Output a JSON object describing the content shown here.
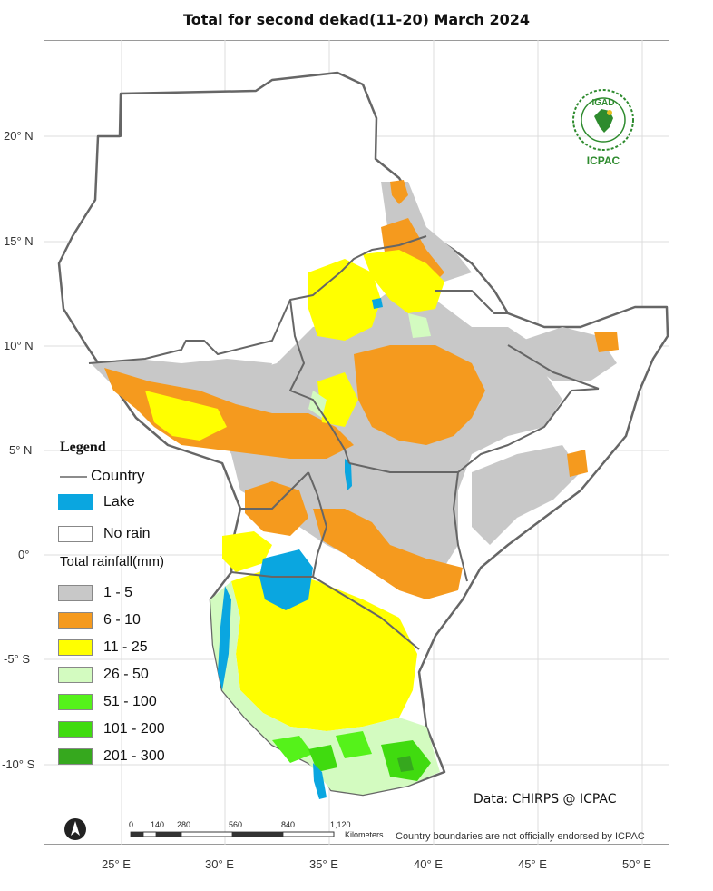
{
  "title": "Total  for  second dekad(11-20) March 2024",
  "lat_labels": [
    "20° N",
    "15° N",
    "10° N",
    "5° N",
    "0°",
    "-5° S",
    "-10° S"
  ],
  "lon_labels": [
    "25° E",
    "30° E",
    "35° E",
    "40° E",
    "45° E",
    "50° E"
  ],
  "legend": {
    "title": "Legend",
    "country": "Country",
    "lake": "Lake",
    "no_rain": "No rain",
    "rainfall_title": "Total rainfall(mm)",
    "classes": [
      {
        "label": "1 - 5",
        "color": "#c8c8c8"
      },
      {
        "label": "6 - 10",
        "color": "#f59a1e"
      },
      {
        "label": "11 - 25",
        "color": "#ffff00"
      },
      {
        "label": "26 - 50",
        "color": "#d3fbc0"
      },
      {
        "label": "51 - 100",
        "color": "#55f21a"
      },
      {
        "label": "101 - 200",
        "color": "#40db0f"
      },
      {
        "label": "201 - 300",
        "color": "#36a81e"
      }
    ],
    "lake_color": "#0aa6e0",
    "country_line_color": "#666666"
  },
  "logo": {
    "top_text": "IGAD",
    "bottom_text": "ICPAC",
    "color": "#2e8b2e"
  },
  "credit": "Data: CHIRPS @ ICPAC",
  "disclaimer": "Country boundaries are not officially endorsed by ICPAC",
  "scale": {
    "ticks": [
      "0",
      "140",
      "280",
      "560",
      "840",
      "1,120"
    ],
    "unit": "Kilometers"
  }
}
